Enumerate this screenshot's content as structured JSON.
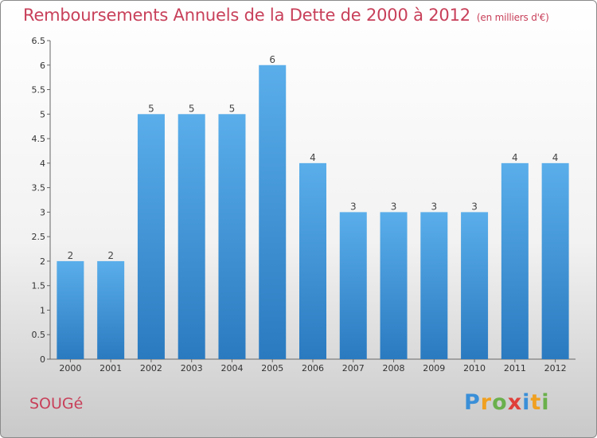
{
  "header": {
    "title": "Remboursements Annuels de la Dette de 2000 à 2012",
    "subtitle": "(en milliers d'€)"
  },
  "footer": {
    "commune": "SOUGé",
    "logo": "Proxiti"
  },
  "colors": {
    "title": "#c8405a",
    "bar_top": "#5aaeea",
    "bar_bottom": "#2a7ac0"
  },
  "chart_data": {
    "type": "bar",
    "title": "Remboursements Annuels de la Dette de 2000 à 2012",
    "subtitle": "(en milliers d'€)",
    "xlabel": "",
    "ylabel": "",
    "categories": [
      "2000",
      "2001",
      "2002",
      "2003",
      "2004",
      "2005",
      "2006",
      "2007",
      "2008",
      "2009",
      "2010",
      "2011",
      "2012"
    ],
    "values": [
      2,
      2,
      5,
      5,
      5,
      6,
      4,
      3,
      3,
      3,
      3,
      4,
      4
    ],
    "data_labels": [
      "2",
      "2",
      "5",
      "5",
      "5",
      "6",
      "4",
      "3",
      "3",
      "3",
      "3",
      "4",
      "4"
    ],
    "ylim": [
      0,
      6.5
    ],
    "yticks": [
      0,
      0.5,
      1,
      1.5,
      2,
      2.5,
      3,
      3.5,
      4,
      4.5,
      5,
      5.5,
      6,
      6.5
    ],
    "ytick_labels": [
      "0",
      "0.5",
      "1",
      "1.5",
      "2",
      "2.5",
      "3",
      "3.5",
      "4",
      "4.5",
      "5",
      "5.5",
      "6",
      "6.5"
    ],
    "grid": false
  }
}
